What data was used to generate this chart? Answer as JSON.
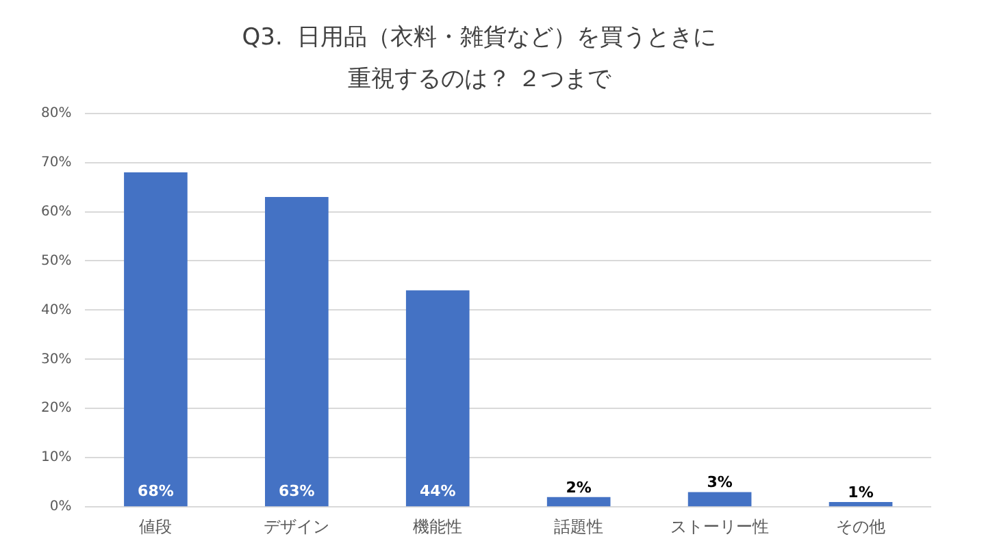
{
  "chart_data": {
    "type": "bar",
    "title": "Q3.  日用品（衣料・雑貨など）を買うときに",
    "subtitle": "重視するのは？ ２つまで",
    "categories": [
      "値段",
      "デザイン",
      "機能性",
      "話題性",
      "ストーリー性",
      "その他"
    ],
    "values": [
      68,
      63,
      44,
      2,
      3,
      1
    ],
    "value_labels": [
      "68%",
      "63%",
      "44%",
      "2%",
      "3%",
      "1%"
    ],
    "color": "#4472c4",
    "ylim": [
      0,
      80
    ],
    "yticks": [
      {
        "value": 0,
        "label": "0%"
      },
      {
        "value": 10,
        "label": "10%"
      },
      {
        "value": 20,
        "label": "20%"
      },
      {
        "value": 30,
        "label": "30%"
      },
      {
        "value": 40,
        "label": "40%"
      },
      {
        "value": 50,
        "label": "50%"
      },
      {
        "value": 60,
        "label": "60%"
      },
      {
        "value": 70,
        "label": "70%"
      },
      {
        "value": 80,
        "label": "80%"
      }
    ],
    "grid": "y"
  }
}
